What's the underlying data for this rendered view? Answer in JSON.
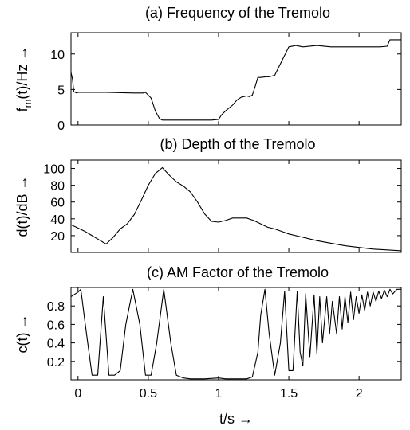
{
  "chart_data": [
    {
      "type": "line",
      "title": "(a) Frequency of the Tremolo",
      "ylabel": "f_m(t)/Hz →",
      "xlabel": "",
      "xlim": [
        -0.05,
        2.3
      ],
      "ylim": [
        0,
        13
      ],
      "yticks": [
        0,
        5,
        10
      ],
      "ytick_labels": [
        "0",
        "5",
        "10"
      ],
      "xticks": [
        0,
        0.5,
        1,
        1.5,
        2
      ],
      "xtick_labels": [],
      "grid": false,
      "series": [
        {
          "x": [
            -0.05,
            -0.04,
            -0.03,
            -0.01,
            0.0,
            0.2,
            0.4,
            0.46,
            0.48,
            0.5,
            0.52,
            0.55,
            0.58,
            0.6,
            0.7,
            0.8,
            0.9,
            0.95,
            1.0,
            1.02,
            1.05,
            1.1,
            1.13,
            1.16,
            1.2,
            1.22,
            1.24,
            1.26,
            1.28,
            1.3,
            1.34,
            1.36,
            1.4,
            1.5,
            1.55,
            1.6,
            1.7,
            1.8,
            1.9,
            2.0,
            2.15,
            2.2,
            2.22,
            2.3
          ],
          "y": [
            7.4,
            6.5,
            4.7,
            4.5,
            4.6,
            4.6,
            4.5,
            4.5,
            4.6,
            4.2,
            3.8,
            2.0,
            0.9,
            0.7,
            0.7,
            0.7,
            0.7,
            0.7,
            0.8,
            1.4,
            2.0,
            2.8,
            3.5,
            3.9,
            4.1,
            4.0,
            4.2,
            5.4,
            6.7,
            6.7,
            6.8,
            6.8,
            7.0,
            11.0,
            11.2,
            11.0,
            11.2,
            11.0,
            11.0,
            11.0,
            11.0,
            11.1,
            12.0,
            12.0
          ]
        }
      ]
    },
    {
      "type": "line",
      "title": "(b) Depth of the Tremolo",
      "ylabel": "d(t)/dB →",
      "xlabel": "",
      "xlim": [
        -0.05,
        2.3
      ],
      "ylim": [
        0,
        110
      ],
      "yticks": [
        20,
        40,
        60,
        80,
        100
      ],
      "ytick_labels": [
        "20",
        "40",
        "60",
        "80",
        "100"
      ],
      "xticks": [
        0,
        0.5,
        1,
        1.5,
        2
      ],
      "xtick_labels": [],
      "grid": false,
      "series": [
        {
          "x": [
            -0.05,
            0.0,
            0.05,
            0.1,
            0.15,
            0.2,
            0.25,
            0.3,
            0.35,
            0.4,
            0.45,
            0.5,
            0.55,
            0.6,
            0.65,
            0.7,
            0.75,
            0.8,
            0.85,
            0.9,
            0.95,
            1.0,
            1.05,
            1.1,
            1.15,
            1.2,
            1.25,
            1.3,
            1.35,
            1.4,
            1.45,
            1.5,
            1.6,
            1.7,
            1.8,
            1.9,
            2.0,
            2.1,
            2.2,
            2.3
          ],
          "y": [
            33,
            29,
            25,
            20,
            15,
            10,
            18,
            28,
            34,
            45,
            62,
            80,
            94,
            101,
            92,
            84,
            79,
            72,
            60,
            46,
            37,
            36,
            38,
            41,
            41,
            41,
            38,
            34,
            30,
            28,
            25,
            22,
            18,
            14,
            11,
            8,
            6,
            4,
            3,
            2
          ]
        }
      ]
    },
    {
      "type": "line",
      "title": "(c) AM Factor of the Tremolo",
      "ylabel": "c(t) →",
      "xlabel": "t/s →",
      "xlim": [
        -0.05,
        2.3
      ],
      "ylim": [
        0,
        1.0
      ],
      "yticks": [
        0.2,
        0.4,
        0.6,
        0.8
      ],
      "ytick_labels": [
        "0.2",
        "0.4",
        "0.6",
        "0.8"
      ],
      "xticks": [
        0,
        0.5,
        1,
        1.5,
        2
      ],
      "xtick_labels": [
        "0",
        "0.5",
        "1",
        "1.5",
        "2"
      ],
      "grid": false,
      "series": [
        {
          "x": [
            -0.05,
            0.0,
            0.02,
            0.06,
            0.1,
            0.14,
            0.18,
            0.22,
            0.26,
            0.3,
            0.34,
            0.39,
            0.44,
            0.48,
            0.52,
            0.56,
            0.61,
            0.66,
            0.7,
            0.75,
            0.8,
            0.9,
            1.0,
            1.05,
            1.1,
            1.15,
            1.2,
            1.24,
            1.28,
            1.3,
            1.33,
            1.36,
            1.4,
            1.44,
            1.47,
            1.5,
            1.53,
            1.56,
            1.58,
            1.6,
            1.62,
            1.65,
            1.68,
            1.7,
            1.72,
            1.74,
            1.77,
            1.79,
            1.81,
            1.84,
            1.86,
            1.88,
            1.9,
            1.92,
            1.94,
            1.96,
            1.98,
            2.0,
            2.02,
            2.04,
            2.06,
            2.08,
            2.1,
            2.12,
            2.14,
            2.16,
            2.18,
            2.2,
            2.22,
            2.24,
            2.27,
            2.3
          ],
          "y": [
            0.9,
            0.95,
            0.98,
            0.5,
            0.05,
            0.05,
            0.9,
            0.05,
            0.05,
            0.1,
            0.6,
            0.98,
            0.6,
            0.05,
            0.05,
            0.4,
            0.98,
            0.4,
            0.05,
            0.02,
            0.01,
            0.01,
            0.02,
            0.01,
            0.01,
            0.01,
            0.01,
            0.03,
            0.3,
            0.7,
            0.98,
            0.5,
            0.05,
            0.4,
            0.96,
            0.1,
            0.1,
            0.96,
            0.3,
            0.15,
            0.93,
            0.25,
            0.92,
            0.28,
            0.9,
            0.4,
            0.9,
            0.5,
            0.85,
            0.5,
            0.9,
            0.55,
            0.9,
            0.62,
            0.95,
            0.65,
            0.9,
            0.72,
            0.92,
            0.75,
            0.95,
            0.8,
            0.95,
            0.85,
            0.96,
            0.88,
            0.97,
            0.9,
            0.98,
            0.93,
            0.98,
            0.98
          ]
        }
      ]
    }
  ]
}
